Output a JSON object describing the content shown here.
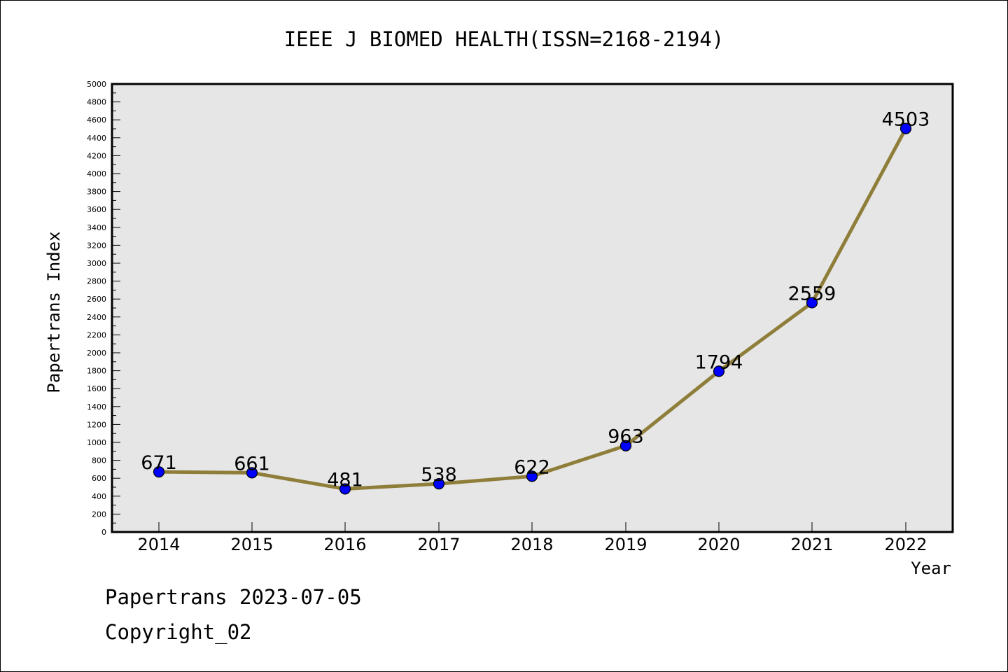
{
  "chart_data": {
    "type": "line",
    "title": "IEEE J BIOMED HEALTH(ISSN=2168-2194)",
    "xlabel": "Year",
    "ylabel": "Papertrans Index",
    "categories": [
      "2014",
      "2015",
      "2016",
      "2017",
      "2018",
      "2019",
      "2020",
      "2021",
      "2022"
    ],
    "values": [
      671,
      661,
      481,
      538,
      622,
      963,
      1794,
      2559,
      4503
    ],
    "data_labels": [
      "671",
      "661",
      "481",
      "538",
      "622",
      "963",
      "1794",
      "2559",
      "4503"
    ],
    "ylim": [
      0,
      5000
    ],
    "ytick_step": 200,
    "yticks": [
      "0",
      "200",
      "400",
      "600",
      "800",
      "1000",
      "1200",
      "1400",
      "1600",
      "1800",
      "2000",
      "2200",
      "2400",
      "2600",
      "2800",
      "3000",
      "3200",
      "3400",
      "3600",
      "3800",
      "4000",
      "4200",
      "4400",
      "4600",
      "4800",
      "5000"
    ],
    "grid": false,
    "line_color": "#8f7e3a",
    "marker_color": "#0000ff",
    "plot_background": "#e6e6e6"
  },
  "footer": {
    "date_line": "Papertrans 2023-07-05",
    "copyright_line": "Copyright_02"
  }
}
